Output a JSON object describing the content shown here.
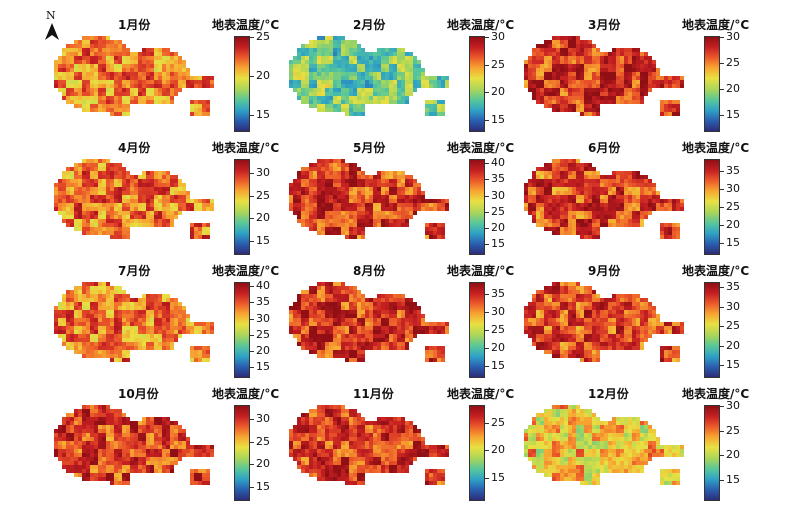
{
  "north_label": "N",
  "unit_label": "地表温度/°C",
  "colormap": [
    "#2c2d7a",
    "#2a5fb0",
    "#2fa2c6",
    "#58c79a",
    "#a8d55a",
    "#e8e042",
    "#f7a631",
    "#ec5a2a",
    "#c51f22",
    "#8f0f15"
  ],
  "panels": [
    {
      "title": "1月份",
      "ticks": [
        15,
        20,
        25
      ],
      "range": [
        13,
        25
      ],
      "mean_level": 0.72
    },
    {
      "title": "2月份",
      "ticks": [
        15,
        20,
        25,
        30
      ],
      "range": [
        13,
        30
      ],
      "mean_level": 0.38
    },
    {
      "title": "3月份",
      "ticks": [
        15,
        20,
        25,
        30
      ],
      "range": [
        12,
        30
      ],
      "mean_level": 0.86
    },
    {
      "title": "4月份",
      "ticks": [
        15,
        20,
        25,
        30
      ],
      "range": [
        12,
        33
      ],
      "mean_level": 0.74
    },
    {
      "title": "5月份",
      "ticks": [
        15,
        20,
        25,
        30,
        35,
        40
      ],
      "range": [
        12,
        41
      ],
      "mean_level": 0.84
    },
    {
      "title": "6月份",
      "ticks": [
        15,
        20,
        25,
        30,
        35
      ],
      "range": [
        12,
        38
      ],
      "mean_level": 0.82
    },
    {
      "title": "7月份",
      "ticks": [
        15,
        20,
        25,
        30,
        35,
        40
      ],
      "range": [
        12,
        41
      ],
      "mean_level": 0.72
    },
    {
      "title": "8月份",
      "ticks": [
        15,
        20,
        25,
        30,
        35
      ],
      "range": [
        12,
        38
      ],
      "mean_level": 0.85
    },
    {
      "title": "9月份",
      "ticks": [
        15,
        20,
        25,
        30,
        35
      ],
      "range": [
        12,
        36
      ],
      "mean_level": 0.82
    },
    {
      "title": "10月份",
      "ticks": [
        15,
        20,
        25,
        30
      ],
      "range": [
        12,
        33
      ],
      "mean_level": 0.84
    },
    {
      "title": "11月份",
      "ticks": [
        15,
        20,
        25
      ],
      "range": [
        11,
        28
      ],
      "mean_level": 0.86
    },
    {
      "title": "12月份",
      "ticks": [
        15,
        20,
        25,
        30
      ],
      "range": [
        11,
        30
      ],
      "mean_level": 0.6
    }
  ]
}
